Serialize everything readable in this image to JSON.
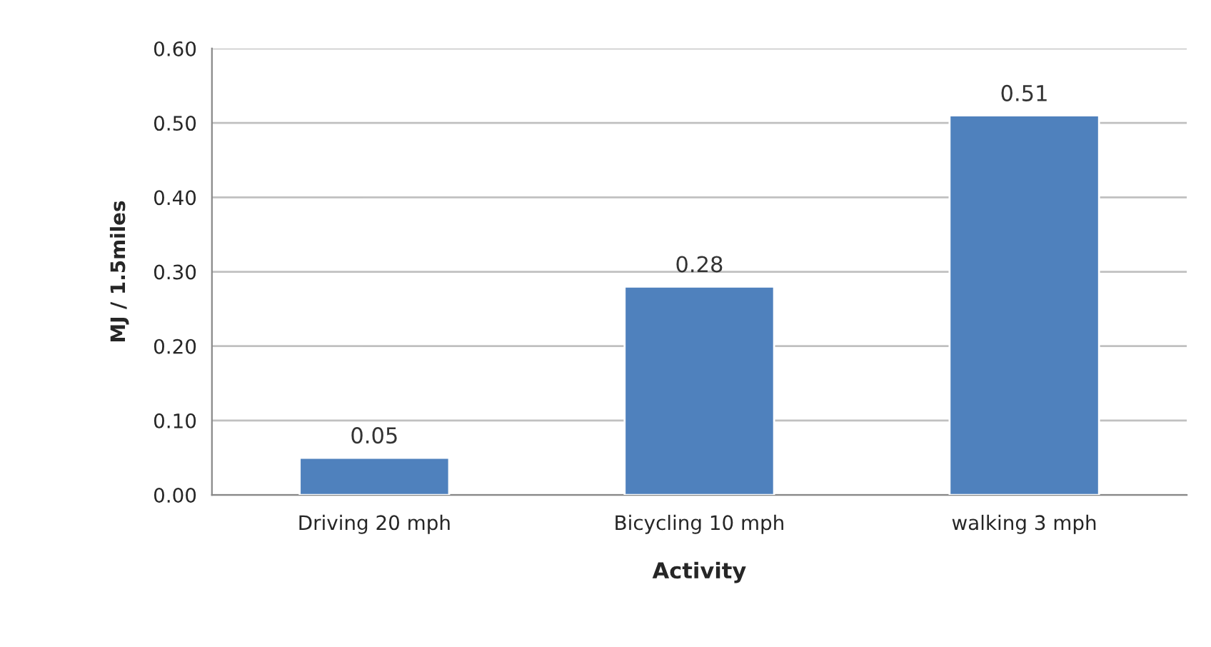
{
  "chart_data": {
    "type": "bar",
    "xlabel": "Activity",
    "ylabel": "MJ / 1.5miles",
    "categories": [
      "Driving 20 mph",
      "Bicycling 10 mph",
      "walking 3 mph"
    ],
    "values": [
      0.05,
      0.28,
      0.51
    ],
    "color": "#4f81bd",
    "data_labels": true,
    "ylim": [
      0,
      0.6
    ],
    "yticks": [
      {
        "value": 0,
        "label": "0.00"
      },
      {
        "value": 0.1,
        "label": "0.10"
      },
      {
        "value": 0.2,
        "label": "0.20"
      },
      {
        "value": 0.3,
        "label": "0.30"
      },
      {
        "value": 0.4,
        "label": "0.40"
      },
      {
        "value": 0.5,
        "label": "0.50"
      },
      {
        "value": 0.6,
        "label": "0.60"
      }
    ],
    "grid": "y"
  }
}
